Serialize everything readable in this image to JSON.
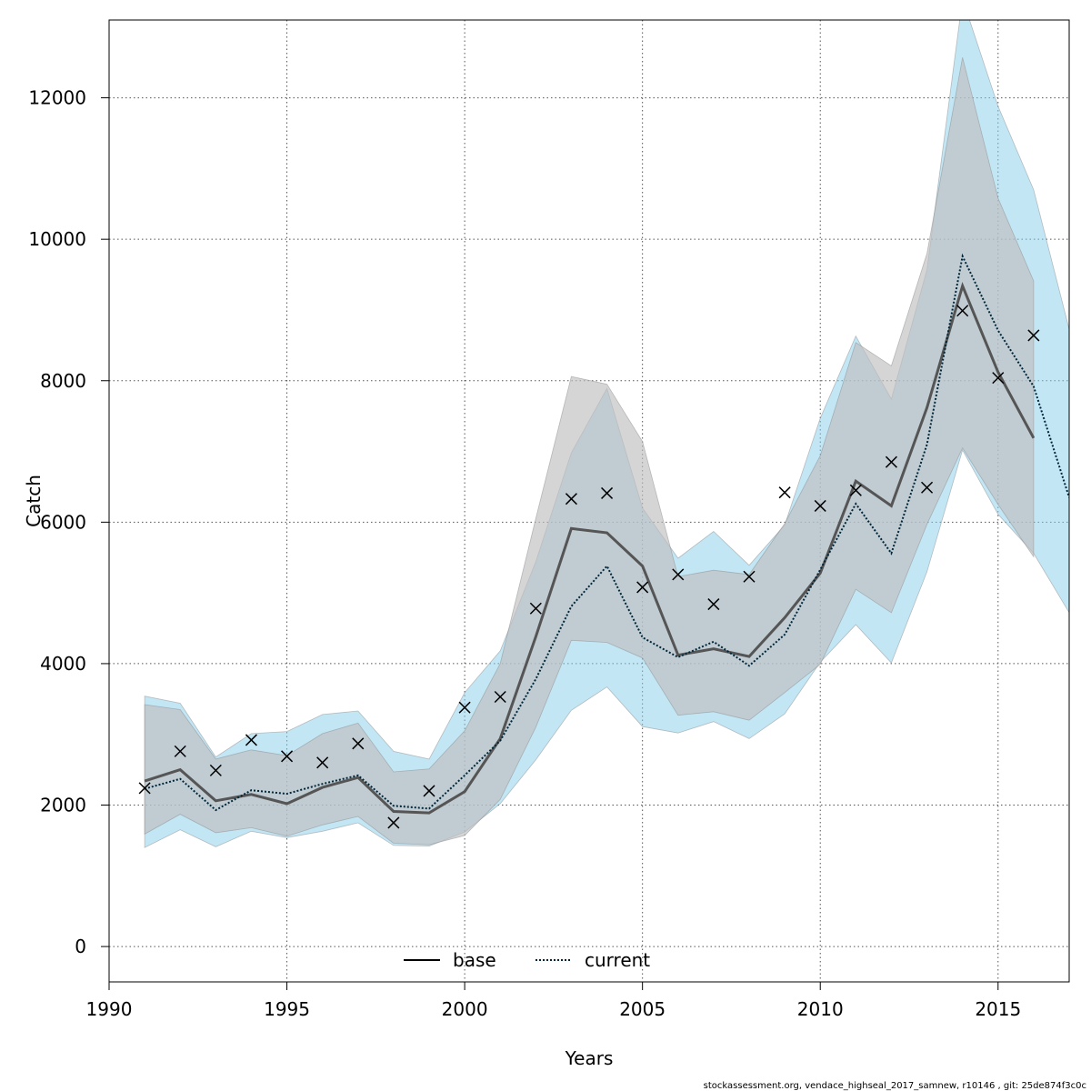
{
  "chart_data": {
    "type": "line",
    "xlabel": "Years",
    "ylabel": "Catch",
    "xlim": [
      1990,
      2017
    ],
    "ylim": [
      -500,
      13100
    ],
    "x_ticks": [
      1990,
      1995,
      2000,
      2005,
      2010,
      2015
    ],
    "y_ticks": [
      0,
      2000,
      4000,
      6000,
      8000,
      10000,
      12000
    ],
    "grid": true,
    "legend_position": "bottom-center",
    "series": [
      {
        "name": "base",
        "style": "solid",
        "line_color": "#555555",
        "band_color": "#bebebe",
        "x": [
          1991,
          1992,
          1993,
          1994,
          1995,
          1996,
          1997,
          1998,
          1999,
          2000,
          2001,
          2002,
          2003,
          2004,
          2005,
          2006,
          2007,
          2008,
          2009,
          2010,
          2011,
          2012,
          2013,
          2014,
          2015,
          2016
        ],
        "values": [
          2340,
          2500,
          2060,
          2150,
          2020,
          2250,
          2390,
          1910,
          1890,
          2190,
          2940,
          4380,
          5910,
          5850,
          5380,
          4120,
          4210,
          4100,
          4650,
          5280,
          6580,
          6230,
          7620,
          9340,
          8120,
          7190
        ],
        "lower": [
          1590,
          1870,
          1610,
          1680,
          1560,
          1720,
          1840,
          1460,
          1440,
          1570,
          2080,
          3100,
          4330,
          4300,
          4080,
          3270,
          3320,
          3200,
          3590,
          3990,
          5050,
          4720,
          5970,
          7050,
          6250,
          5510
        ],
        "upper": [
          3420,
          3350,
          2650,
          2780,
          2700,
          3010,
          3160,
          2470,
          2510,
          3050,
          4000,
          6050,
          8060,
          7950,
          7140,
          5230,
          5320,
          5260,
          5980,
          6940,
          8540,
          8210,
          9800,
          12570,
          10580,
          9410
        ]
      },
      {
        "name": "current",
        "style": "dotted",
        "line_color": "#00263a",
        "band_color": "#87ceeb",
        "x": [
          1991,
          1992,
          1993,
          1994,
          1995,
          1996,
          1997,
          1998,
          1999,
          2000,
          2001,
          2002,
          2003,
          2004,
          2005,
          2006,
          2007,
          2008,
          2009,
          2010,
          2011,
          2012,
          2013,
          2014,
          2015,
          2016,
          2017
        ],
        "values": [
          2230,
          2370,
          1930,
          2210,
          2160,
          2300,
          2420,
          1990,
          1950,
          2420,
          2910,
          3780,
          4810,
          5380,
          4370,
          4090,
          4310,
          3970,
          4410,
          5330,
          6260,
          5560,
          7100,
          9760,
          8710,
          7920,
          6350
        ],
        "lower": [
          1400,
          1650,
          1410,
          1630,
          1540,
          1630,
          1750,
          1430,
          1420,
          1620,
          2020,
          2640,
          3340,
          3670,
          3110,
          3020,
          3180,
          2940,
          3290,
          4020,
          4550,
          4010,
          5300,
          7020,
          6110,
          5560,
          4720
        ],
        "upper": [
          3540,
          3440,
          2680,
          3010,
          3040,
          3280,
          3330,
          2760,
          2650,
          3590,
          4180,
          5440,
          6980,
          7890,
          6200,
          5490,
          5870,
          5390,
          5960,
          7470,
          8630,
          7740,
          9570,
          13400,
          11880,
          10700,
          8730
        ]
      }
    ],
    "observations": {
      "marker": "x",
      "x": [
        1991,
        1992,
        1993,
        1994,
        1995,
        1996,
        1997,
        1998,
        1999,
        2000,
        2001,
        2002,
        2003,
        2004,
        2005,
        2006,
        2007,
        2008,
        2009,
        2010,
        2011,
        2012,
        2013,
        2014,
        2015,
        2016
      ],
      "values": [
        2240,
        2760,
        2490,
        2920,
        2690,
        2600,
        2870,
        1750,
        2200,
        3380,
        3530,
        4780,
        6330,
        6410,
        5080,
        5260,
        4840,
        5230,
        6420,
        6230,
        6450,
        6850,
        6490,
        8990,
        8040,
        8640
      ]
    }
  },
  "footer": "stockassessment.org, vendace_highseal_2017_samnew, r10146 , git: 25de874f3c0c"
}
